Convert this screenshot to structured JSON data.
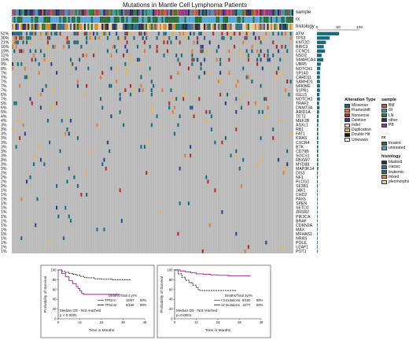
{
  "chart_data": [
    {
      "type": "heatmap",
      "title": "Mutations in Mantle Cell Lymphoma Patients",
      "annotation_tracks": [
        "sample",
        "rx",
        "histology"
      ],
      "bar_ticks": [
        "0",
        "50",
        "100"
      ],
      "genes": [
        "ATM",
        "TP53",
        "KMT2D",
        "BIRC3",
        "CCND1",
        "NSD2",
        "SMARCA4",
        "UBR5",
        "NOTCH1",
        "SP140",
        "CARD11",
        "SAMHD1",
        "NFKBIE",
        "S1PR1",
        "IGLL5",
        "NOTCH2",
        "TRAF2",
        "DNMT3A",
        "ARID1A",
        "TET2",
        "MEF2B",
        "ASXL1",
        "RB1",
        "FAT1",
        "KRAS",
        "CXCR4",
        "BTK",
        "CD79B",
        "SOCS1",
        "FBXW7",
        "MYD88",
        "MAP3K14",
        "DIS3",
        "NF1",
        "PLCG2",
        "SF3B1",
        "JAK1",
        "CHD2",
        "PAX5",
        "SPEN",
        "SETD2",
        "ZRSR2",
        "PIK3CA",
        "BRAF",
        "CDKN2A",
        "MAX",
        "MFHAS1",
        "NRAS",
        "POLE",
        "U2AF1",
        "POT1"
      ],
      "percentages": [
        "52%",
        "30%",
        "21%",
        "16%",
        "19%",
        "11%",
        "15%",
        "9%",
        "8%",
        "7%",
        "7%",
        "7%",
        "7%",
        "7%",
        "6%",
        "7%",
        "5%",
        "6%",
        "5%",
        "4%",
        "4%",
        "3%",
        "3%",
        "3%",
        "3%",
        "3%",
        "3%",
        "3%",
        "3%",
        "3%",
        "3%",
        "3%",
        "2%",
        "2%",
        "2%",
        "2%",
        "1%",
        "1%",
        "1%",
        "1%",
        "1%",
        "1%",
        "1%",
        "1%",
        "1%",
        "1%",
        "1%",
        "1%",
        "1%",
        "1%",
        "1%"
      ],
      "colors": {
        "Missense": "#1a6b7a",
        "Frameshift": "#e07b39",
        "Nonsense": "#b02a2a",
        "Deletion": "#2b3f8c",
        "Indel": "#d8d8d8",
        "Duplication": "#e8b24a",
        "Background": "#b9b9b9"
      }
    },
    {
      "type": "line",
      "xlabel": "Time in Months",
      "ylabel": "Probability of Survival",
      "x_ticks": [
        "0",
        "12",
        "24",
        "36",
        "48"
      ],
      "y_ticks": [
        "0",
        "20",
        "40",
        "60",
        "80",
        "100"
      ],
      "xlim": [
        0,
        48
      ],
      "ylim": [
        0,
        100
      ],
      "header": "Deaths/Total   3 yr%",
      "rows": [
        {
          "name": "TP53 m",
          "stat": "18/67",
          "pct": "50%",
          "color": "#9b1e8a"
        },
        {
          "name": "TP53 wt",
          "stat": "9/159",
          "pct": "80%",
          "color": "#111111"
        }
      ],
      "note_line1": "Median OS - Not reached",
      "note_line2": "p < 0.0001",
      "series": [
        {
          "name": "TP53 wt",
          "x": [
            0,
            2,
            4,
            6,
            8,
            10,
            12,
            14,
            16,
            20,
            24,
            30,
            36,
            40
          ],
          "y": [
            100,
            97,
            95,
            93,
            91,
            89,
            87,
            85,
            84,
            82,
            81,
            80,
            80,
            80
          ]
        },
        {
          "name": "TP53 m",
          "x": [
            0,
            2,
            4,
            6,
            8,
            10,
            11,
            12,
            13,
            14,
            18,
            24,
            30,
            34
          ],
          "y": [
            100,
            93,
            86,
            78,
            72,
            66,
            62,
            57,
            52,
            50,
            50,
            50,
            50,
            50
          ]
        }
      ]
    },
    {
      "type": "line",
      "xlabel": "Time in Months",
      "ylabel": "Probability of Survival",
      "x_ticks": [
        "0",
        "12",
        "24",
        "36",
        "48"
      ],
      "y_ticks": [
        "0",
        "20",
        "40",
        "60",
        "80",
        "100"
      ],
      "xlim": [
        0,
        48
      ],
      "ylim": [
        0,
        100
      ],
      "header": "Deaths/Total   3yr%",
      "rows": [
        {
          "name": "<3 mutations",
          "stat": "8/150",
          "pct": "88%",
          "color": "#9b1e8a"
        },
        {
          "name": "≥3 mutations",
          "stat": "19/77",
          "pct": "58%",
          "color": "#111111"
        }
      ],
      "note_line1": "Median OS - Not reached",
      "note_line2": "p=0.0001",
      "series": [
        {
          "name": "<3 mutations",
          "x": [
            0,
            3,
            6,
            9,
            12,
            16,
            20,
            24,
            30,
            36,
            42
          ],
          "y": [
            100,
            98,
            96,
            94,
            92,
            91,
            90,
            89,
            88,
            88,
            88
          ]
        },
        {
          "name": "≥3 mutations",
          "x": [
            0,
            2,
            4,
            6,
            8,
            10,
            12,
            13,
            14,
            16,
            20,
            24,
            30,
            34
          ],
          "y": [
            100,
            92,
            85,
            79,
            74,
            69,
            64,
            60,
            58,
            58,
            58,
            58,
            58,
            58
          ]
        }
      ]
    }
  ],
  "annotation_labels": {
    "sample": "sample",
    "rx": "rx",
    "histology": "histology"
  },
  "legend": {
    "alteration_title": "Alteration Type",
    "alterations": [
      {
        "label": "Missense",
        "color": "#1a6b7a"
      },
      {
        "label": "Frameshift",
        "color": "#e07b39"
      },
      {
        "label": "Nonsense",
        "color": "#b02a2a"
      },
      {
        "label": "Deletion",
        "color": "#2b3f8c"
      },
      {
        "label": "Indel",
        "color": "#d8d8d8"
      },
      {
        "label": "Duplication",
        "color": "#e8b24a"
      },
      {
        "label": "Double Hit",
        "color": "#111111"
      },
      {
        "label": "Unknown",
        "color": "#ffffff"
      }
    ],
    "sample_title": "sample",
    "samples": [
      {
        "label": "BM",
        "color": "#d6533a"
      },
      {
        "label": "GI",
        "color": "#3f9aa3"
      },
      {
        "label": "LN",
        "color": "#2e7d32"
      },
      {
        "label": "other",
        "color": "#2b2b6b"
      },
      {
        "label": "PB",
        "color": "#8e3a8e"
      }
    ],
    "rx_title": "rx",
    "rx": [
      {
        "label": "treated",
        "color": "#2e6b3a"
      },
      {
        "label": "untreated",
        "color": "#5aa5d8"
      }
    ],
    "histology_title": "histology",
    "histology": [
      {
        "label": "blastoid",
        "color": "#26334f"
      },
      {
        "label": "classic",
        "color": "#3b6aa8"
      },
      {
        "label": "leukemic",
        "color": "#1f7a4a"
      },
      {
        "label": "mixed",
        "color": "#d88a3a"
      },
      {
        "label": "pleomorphic",
        "color": "#e7c9a0"
      }
    ]
  }
}
